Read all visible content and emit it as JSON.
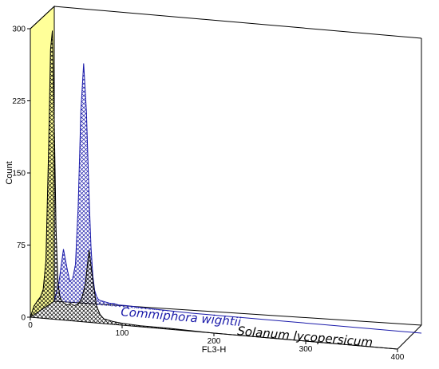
{
  "chart_data": {
    "type": "area",
    "title": "",
    "xlabel": "FL3-H",
    "ylabel": "Count",
    "xlim": [
      0,
      400
    ],
    "ylim": [
      0,
      300
    ],
    "x_ticks": [
      "0",
      "100",
      "200",
      "300",
      "400"
    ],
    "y_ticks": [
      "0",
      "75",
      "150",
      "225",
      "300"
    ],
    "grid": false,
    "annotations": [
      "Commiphora wightii",
      "Solanum lycopersicum"
    ],
    "colors": {
      "frame": "#000000",
      "left_wall": "#ffff99",
      "front_series": "#000000",
      "back_series": "#1a1aaa"
    },
    "series": [
      {
        "name": "Solanum lycopersicum",
        "x": [
          0,
          4,
          8,
          11,
          14,
          17,
          20,
          22,
          24,
          26,
          28,
          30,
          32,
          34,
          36,
          38,
          40,
          44,
          48,
          52,
          56,
          60,
          64,
          68,
          72,
          76,
          80,
          90,
          100,
          120,
          150,
          200,
          250,
          300,
          350,
          400
        ],
        "y": [
          0,
          12,
          18,
          22,
          30,
          60,
          180,
          280,
          300,
          210,
          95,
          40,
          25,
          20,
          18,
          17,
          16,
          18,
          16,
          18,
          24,
          40,
          75,
          45,
          18,
          9,
          5,
          3,
          2,
          1,
          1,
          0,
          0,
          0,
          0,
          0
        ]
      },
      {
        "name": "Commiphora wightii",
        "x": [
          0,
          5,
          10,
          14,
          17,
          20,
          23,
          26,
          29,
          32,
          35,
          38,
          40,
          42,
          44,
          46,
          48,
          50,
          55,
          60,
          65,
          70,
          80,
          100,
          150,
          200,
          250,
          300,
          350,
          400
        ],
        "y": [
          0,
          20,
          55,
          35,
          22,
          25,
          40,
          100,
          200,
          250,
          200,
          110,
          60,
          30,
          15,
          9,
          6,
          5,
          4,
          3,
          3,
          2,
          2,
          1,
          0,
          0,
          0,
          0,
          0,
          0
        ]
      }
    ]
  }
}
